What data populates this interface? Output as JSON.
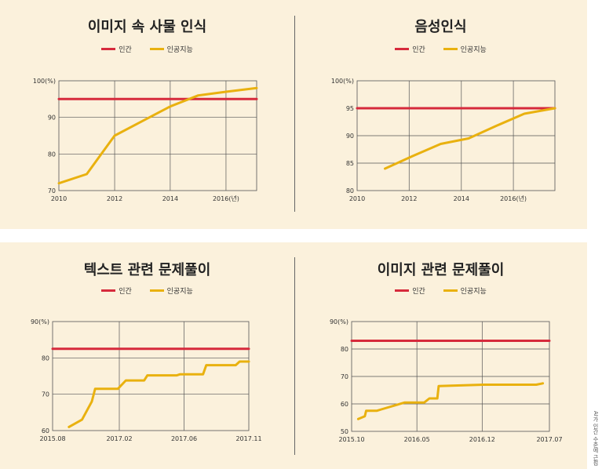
{
  "legend": {
    "human": "인간",
    "ai": "인공지능"
  },
  "colors": {
    "human": "#d62a3c",
    "ai": "#e9b10f",
    "grid": "#555555",
    "panel": "#fbf1dc"
  },
  "credit": "AI가 인간 수준에 근접",
  "chart_data": [
    {
      "type": "line",
      "title": "이미지 속 사물 인식",
      "x_ticks": [
        "2010",
        "2012",
        "2014",
        "2016(년)"
      ],
      "y_ticks": [
        "100(%)",
        "90",
        "80",
        "70"
      ],
      "xlim": [
        2010,
        2017.1
      ],
      "ylim": [
        70,
        100
      ],
      "series": [
        {
          "name": "인간",
          "x": [
            2010,
            2017.1
          ],
          "values": [
            95,
            95
          ]
        },
        {
          "name": "인공지능",
          "x": [
            2010,
            2011,
            2012,
            2013,
            2014,
            2015,
            2016,
            2017.1
          ],
          "values": [
            72,
            74.5,
            85,
            89,
            93,
            96,
            97,
            98
          ]
        }
      ]
    },
    {
      "type": "line",
      "title": "음성인식",
      "x_ticks": [
        "2010",
        "2012",
        "2014",
        "2016(년)"
      ],
      "y_ticks": [
        "100(%)",
        "95",
        "90",
        "85",
        "80"
      ],
      "xlim": [
        2010,
        2017.1
      ],
      "ylim": [
        80,
        100
      ],
      "series": [
        {
          "name": "인간",
          "x": [
            2010,
            2017.1
          ],
          "values": [
            95,
            95
          ]
        },
        {
          "name": "인공지능",
          "x": [
            2011,
            2012,
            2013,
            2014,
            2015,
            2016,
            2017.1
          ],
          "values": [
            84,
            86.3,
            88.5,
            89.5,
            91.8,
            94,
            95
          ]
        }
      ]
    },
    {
      "type": "line",
      "title": "텍스트 관련 문제풀이",
      "x_ticks": [
        "2015.08",
        "2017.02",
        "2017.06",
        "2017.11"
      ],
      "y_ticks": [
        "90(%)",
        "80",
        "70",
        "60"
      ],
      "xlim": [
        0,
        3
      ],
      "ylim": [
        60,
        90
      ],
      "series": [
        {
          "name": "인간",
          "x": [
            0,
            3
          ],
          "values": [
            82.5,
            82.5
          ]
        },
        {
          "name": "인공지능",
          "x": [
            0.25,
            0.45,
            0.6,
            0.65,
            0.72,
            1.0,
            1.12,
            1.4,
            1.45,
            1.9,
            1.95,
            2.3,
            2.35,
            2.8,
            2.86,
            3.0
          ],
          "values": [
            61,
            63,
            68,
            71.5,
            71.5,
            71.5,
            73.8,
            73.8,
            75.2,
            75.2,
            75.5,
            75.5,
            78,
            78,
            79,
            79
          ]
        }
      ]
    },
    {
      "type": "line",
      "title": "이미지 관련 문제풀이",
      "x_ticks": [
        "2015.10",
        "2016.05",
        "2016.12",
        "2017.07"
      ],
      "y_ticks": [
        "90(%)",
        "80",
        "70",
        "60",
        "50"
      ],
      "xlim": [
        0,
        3
      ],
      "ylim": [
        50,
        90
      ],
      "series": [
        {
          "name": "인간",
          "x": [
            0,
            3
          ],
          "values": [
            83,
            83
          ]
        },
        {
          "name": "인공지능",
          "x": [
            0.1,
            0.2,
            0.22,
            0.38,
            0.45,
            0.8,
            1.1,
            1.18,
            1.2,
            1.3,
            1.32,
            2.0,
            2.8,
            2.9
          ],
          "values": [
            54.5,
            55.5,
            57.5,
            57.5,
            58,
            60.5,
            60.5,
            62,
            62,
            62,
            66.5,
            67,
            67,
            67.5
          ]
        }
      ]
    }
  ]
}
